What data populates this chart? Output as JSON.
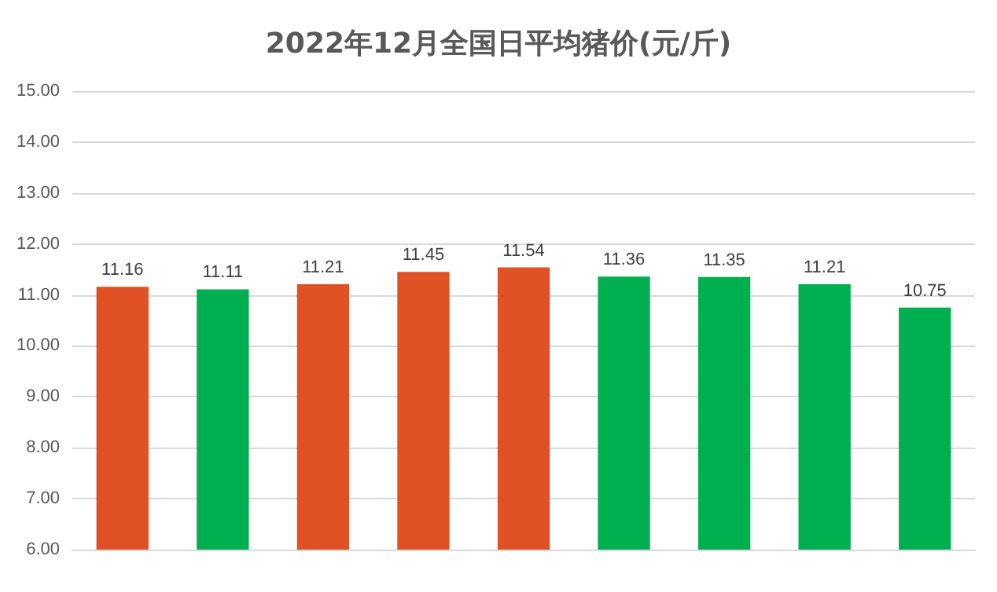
{
  "chart_data": {
    "type": "bar",
    "title": "2022年12月全国日平均猪价(元/斤)",
    "categories": [
      null,
      null,
      null,
      null,
      null,
      null,
      null,
      null,
      null
    ],
    "values": [
      11.16,
      11.11,
      11.21,
      11.45,
      11.54,
      11.36,
      11.35,
      11.21,
      10.75
    ],
    "colors": [
      "#e05226",
      "#00b050",
      "#e05226",
      "#e05226",
      "#e05226",
      "#00b050",
      "#00b050",
      "#00b050",
      "#00b050"
    ],
    "ylim": [
      6,
      15
    ],
    "yticks": [
      {
        "value": 6,
        "label": "6.00"
      },
      {
        "value": 7,
        "label": "7.00"
      },
      {
        "value": 8,
        "label": "8.00"
      },
      {
        "value": 9,
        "label": "9.00"
      },
      {
        "value": 10,
        "label": "10.00"
      },
      {
        "value": 11,
        "label": "11.00"
      },
      {
        "value": 12,
        "label": "12.00"
      },
      {
        "value": 13,
        "label": "13.00"
      },
      {
        "value": 14,
        "label": "14.00"
      },
      {
        "value": 15,
        "label": "15.00"
      }
    ],
    "grid": "y",
    "data_labels": true,
    "tick_labels": "y"
  }
}
